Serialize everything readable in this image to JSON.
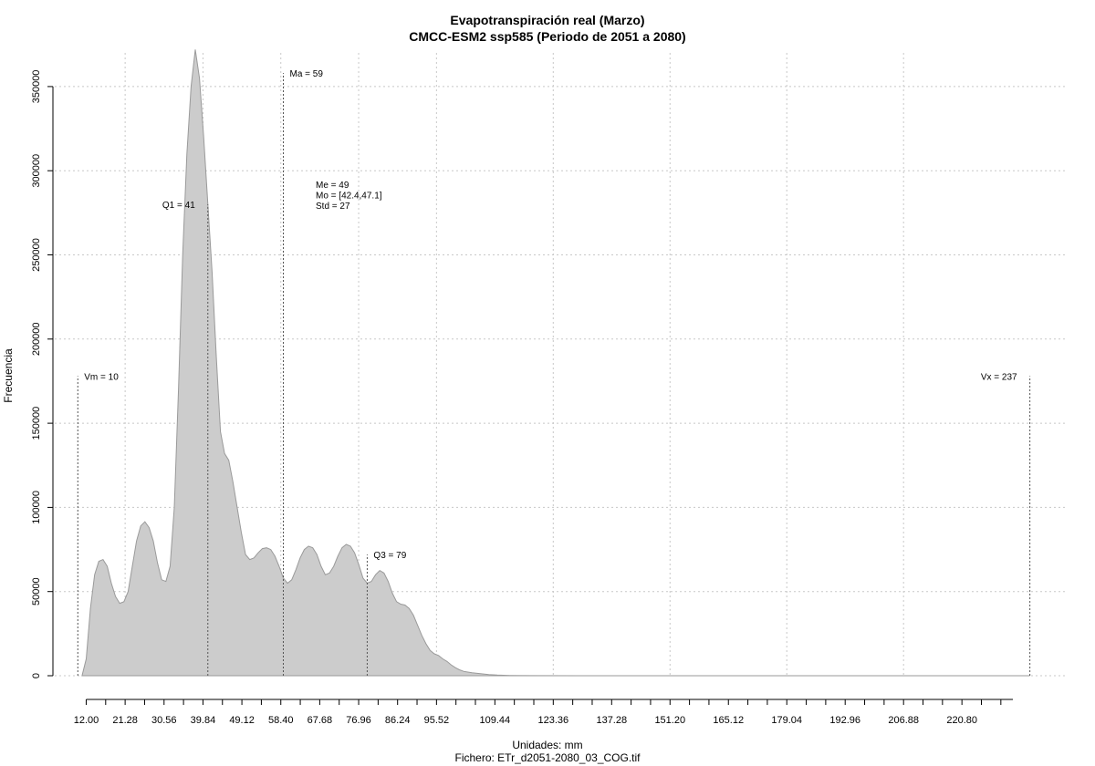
{
  "chart_data": {
    "type": "area",
    "title": "Evapotranspiración real (Marzo)",
    "subtitle": "CMCC-ESM2 ssp585 (Periodo de 2051 a 2080)",
    "xlabel": "Unidades: mm",
    "ylabel": "Frecuencia",
    "footer": "Fichero: ETr_d2051-2080_03_COG.tif",
    "xlim": [
      4.5,
      246
    ],
    "ylim": [
      0,
      370000
    ],
    "xticks": [
      12.0,
      21.28,
      30.56,
      39.84,
      49.12,
      58.4,
      67.68,
      76.96,
      86.24,
      95.52,
      109.44,
      123.36,
      137.28,
      151.2,
      165.12,
      179.04,
      192.96,
      206.88,
      220.8
    ],
    "xtick_labels": [
      "12.00",
      "21.28",
      "30.56",
      "39.84",
      "49.12",
      "58.40",
      "67.68",
      "76.96",
      "86.24",
      "95.52",
      "109.44",
      "123.36",
      "137.28",
      "151.20",
      "165.12",
      "179.04",
      "192.96",
      "206.88",
      "220.80"
    ],
    "yticks": [
      0,
      50000,
      100000,
      150000,
      200000,
      250000,
      300000,
      350000
    ],
    "ytick_labels": [
      "0",
      "50000",
      "100000",
      "150000",
      "200000",
      "250000",
      "300000",
      "350000"
    ],
    "grid": true,
    "series": [
      {
        "values": [
          [
            11,
            0
          ],
          [
            12,
            10000
          ],
          [
            13,
            40000
          ],
          [
            14,
            60000
          ],
          [
            15,
            68000
          ],
          [
            16,
            69000
          ],
          [
            17,
            65000
          ],
          [
            18,
            55000
          ],
          [
            19,
            47000
          ],
          [
            20,
            43000
          ],
          [
            21,
            44000
          ],
          [
            22,
            50000
          ],
          [
            23,
            65000
          ],
          [
            24,
            80000
          ],
          [
            25,
            89000
          ],
          [
            26,
            91500
          ],
          [
            27,
            88000
          ],
          [
            28,
            80000
          ],
          [
            29,
            67000
          ],
          [
            30,
            57000
          ],
          [
            31,
            56000
          ],
          [
            32,
            65000
          ],
          [
            33,
            100000
          ],
          [
            34,
            170000
          ],
          [
            35,
            250000
          ],
          [
            36,
            310000
          ],
          [
            37,
            350000
          ],
          [
            38,
            372000
          ],
          [
            39,
            355000
          ],
          [
            40,
            320000
          ],
          [
            41,
            280000
          ],
          [
            42,
            240000
          ],
          [
            43,
            190000
          ],
          [
            44,
            145000
          ],
          [
            45,
            132000
          ],
          [
            46,
            128000
          ],
          [
            47,
            115000
          ],
          [
            48,
            100000
          ],
          [
            49,
            85000
          ],
          [
            50,
            72000
          ],
          [
            51,
            69000
          ],
          [
            52,
            70000
          ],
          [
            53,
            73000
          ],
          [
            54,
            75500
          ],
          [
            55,
            76000
          ],
          [
            56,
            75000
          ],
          [
            57,
            71000
          ],
          [
            58,
            65000
          ],
          [
            59,
            58000
          ],
          [
            60,
            55000
          ],
          [
            61,
            57000
          ],
          [
            62,
            63000
          ],
          [
            63,
            70000
          ],
          [
            64,
            75000
          ],
          [
            65,
            77000
          ],
          [
            66,
            76000
          ],
          [
            67,
            72000
          ],
          [
            68,
            65000
          ],
          [
            69,
            60000
          ],
          [
            70,
            61000
          ],
          [
            71,
            65000
          ],
          [
            72,
            71000
          ],
          [
            73,
            76000
          ],
          [
            74,
            78000
          ],
          [
            75,
            77000
          ],
          [
            76,
            73000
          ],
          [
            77,
            66000
          ],
          [
            78,
            58000
          ],
          [
            79,
            55000
          ],
          [
            80,
            56000
          ],
          [
            81,
            60000
          ],
          [
            82,
            62500
          ],
          [
            83,
            61000
          ],
          [
            84,
            56000
          ],
          [
            85,
            49000
          ],
          [
            86,
            44000
          ],
          [
            87,
            42500
          ],
          [
            88,
            42000
          ],
          [
            89,
            40000
          ],
          [
            90,
            36000
          ],
          [
            91,
            30000
          ],
          [
            92,
            24000
          ],
          [
            93,
            19000
          ],
          [
            94,
            15000
          ],
          [
            95,
            13000
          ],
          [
            96,
            12000
          ],
          [
            97,
            10000
          ],
          [
            98,
            8500
          ],
          [
            99,
            6500
          ],
          [
            100,
            4800
          ],
          [
            101,
            3500
          ],
          [
            102,
            2600
          ],
          [
            104,
            1800
          ],
          [
            106,
            1200
          ],
          [
            108,
            700
          ],
          [
            110,
            400
          ],
          [
            113,
            150
          ],
          [
            118,
            50
          ],
          [
            130,
            10
          ],
          [
            160,
            0
          ],
          [
            237,
            0
          ]
        ]
      }
    ],
    "vlines": [
      {
        "label": "Vm = 10",
        "x": 10,
        "y_top": 178000
      },
      {
        "label": "Q1 = 41",
        "x": 41,
        "y_top": 280000
      },
      {
        "label": "Ma = 59",
        "x": 59,
        "y_top": 358000
      },
      {
        "label": "Q3 = 79",
        "x": 79,
        "y_top": 72000
      },
      {
        "label": "Vx = 237",
        "x": 237,
        "y_top": 178000
      }
    ],
    "stats_annotation": [
      "Me = 49",
      "Mo = [42.4,47.1]",
      "Std = 27"
    ],
    "colors": {
      "fill": "#cccccc",
      "outline": "#9a9a9a",
      "grid": "#c8c8c8",
      "axis": "#000000",
      "marker_line": "#555555"
    }
  }
}
